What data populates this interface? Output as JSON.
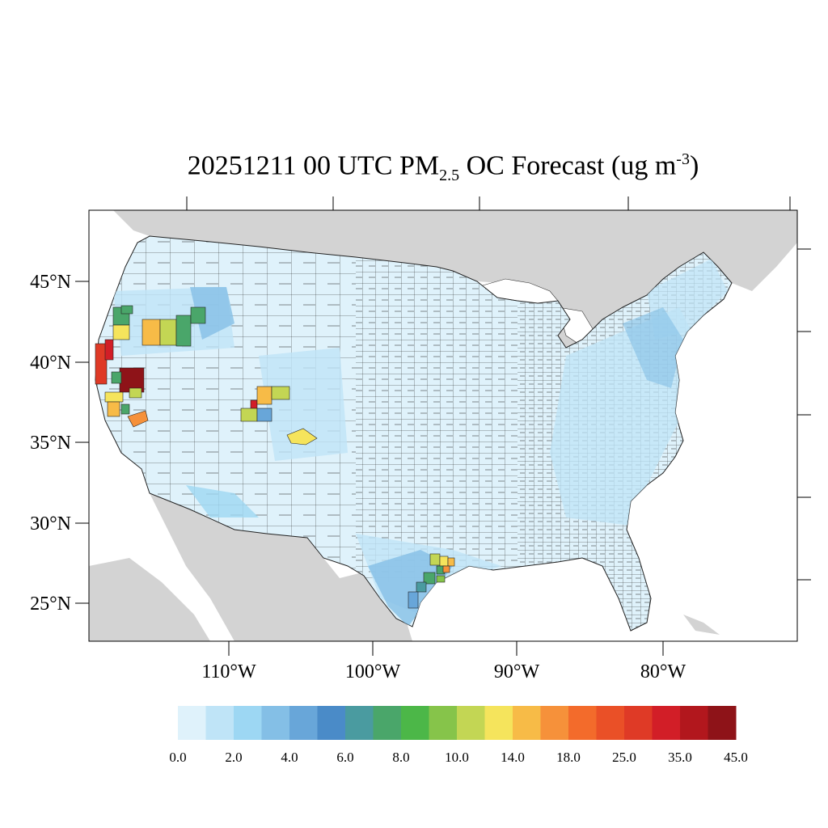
{
  "title": {
    "date_time": "20251211 00 UTC PM",
    "subscript": "2.5",
    "species": " OC Forecast (ug m",
    "superscript": "-3",
    "close": ")"
  },
  "axes": {
    "lat_labels": [
      "45°N",
      "40°N",
      "35°N",
      "30°N",
      "25°N"
    ],
    "lon_labels": [
      "110°W",
      "100°W",
      "90°W",
      "80°W"
    ]
  },
  "colorbar": {
    "colors": [
      "#dff2fb",
      "#bfe4f7",
      "#9dd7f3",
      "#84bfe6",
      "#68a6d9",
      "#4a8bc8",
      "#4a9ba0",
      "#4aa66a",
      "#4cb748",
      "#86c44a",
      "#c3d654",
      "#f5e45c",
      "#f7bb47",
      "#f6913a",
      "#f36b2b",
      "#ea5027",
      "#df3a26",
      "#d21e27",
      "#b2171d",
      "#8e1318"
    ],
    "labels": [
      "0.0",
      "2.0",
      "4.0",
      "6.0",
      "8.0",
      "10.0",
      "14.0",
      "18.0",
      "25.0",
      "35.0",
      "45.0"
    ]
  },
  "legend_colors": {
    "land": "#d3d3d3",
    "water": "#ffffff",
    "low_concentration": "#dff2fb"
  }
}
